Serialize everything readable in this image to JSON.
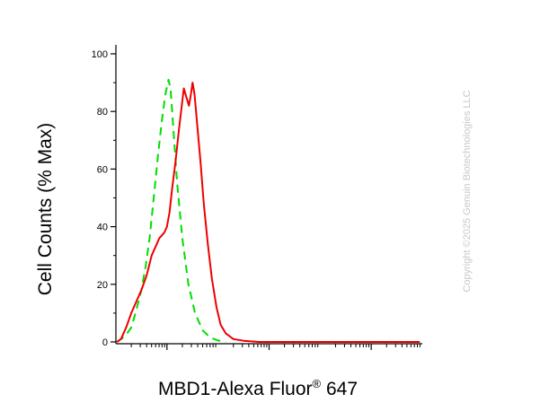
{
  "chart_data": {
    "type": "line",
    "xlabel": {
      "main": "MBD1-Alexa Fluor",
      "superscript": "®",
      "suffix": " 647"
    },
    "ylabel": "Cell Counts (% Max)",
    "ylim": [
      0,
      100
    ],
    "yticks": [
      "0",
      "20",
      "40",
      "60",
      "80",
      "100"
    ],
    "x_scale": "log",
    "x_range_decades": [
      0,
      6
    ],
    "grid": false,
    "series": [
      {
        "color": "#00dd00",
        "dash": "dashed",
        "points": [
          [
            0.02,
            0
          ],
          [
            0.18,
            2
          ],
          [
            0.3,
            5
          ],
          [
            0.4,
            11
          ],
          [
            0.5,
            18
          ],
          [
            0.58,
            26
          ],
          [
            0.66,
            36
          ],
          [
            0.74,
            50
          ],
          [
            0.82,
            64
          ],
          [
            0.9,
            77
          ],
          [
            0.97,
            86
          ],
          [
            1.03,
            91
          ],
          [
            1.07,
            88
          ],
          [
            1.12,
            75
          ],
          [
            1.2,
            55
          ],
          [
            1.3,
            36
          ],
          [
            1.42,
            20
          ],
          [
            1.55,
            10
          ],
          [
            1.7,
            4
          ],
          [
            1.85,
            1.5
          ],
          [
            2.0,
            0.5
          ],
          [
            2.15,
            0
          ]
        ]
      },
      {
        "color": "#ee0000",
        "dash": "solid",
        "points": [
          [
            0.02,
            0
          ],
          [
            0.1,
            1
          ],
          [
            0.2,
            5
          ],
          [
            0.3,
            10
          ],
          [
            0.4,
            14
          ],
          [
            0.5,
            18
          ],
          [
            0.6,
            23
          ],
          [
            0.7,
            30
          ],
          [
            0.75,
            32
          ],
          [
            0.8,
            34
          ],
          [
            0.85,
            36
          ],
          [
            0.9,
            37
          ],
          [
            0.95,
            38
          ],
          [
            1.0,
            40
          ],
          [
            1.05,
            45
          ],
          [
            1.1,
            53
          ],
          [
            1.17,
            63
          ],
          [
            1.23,
            73
          ],
          [
            1.29,
            82
          ],
          [
            1.33,
            88
          ],
          [
            1.38,
            85
          ],
          [
            1.43,
            82
          ],
          [
            1.47,
            86
          ],
          [
            1.5,
            90
          ],
          [
            1.54,
            86
          ],
          [
            1.6,
            74
          ],
          [
            1.66,
            62
          ],
          [
            1.72,
            48
          ],
          [
            1.8,
            34
          ],
          [
            1.88,
            22
          ],
          [
            1.97,
            12
          ],
          [
            2.05,
            6
          ],
          [
            2.15,
            3
          ],
          [
            2.3,
            1
          ],
          [
            2.5,
            0.4
          ],
          [
            2.8,
            0
          ],
          [
            4.0,
            0
          ],
          [
            5.95,
            0
          ]
        ]
      }
    ]
  },
  "watermark": "Copyright ©2025 Genuin Biotechnologies LLC"
}
